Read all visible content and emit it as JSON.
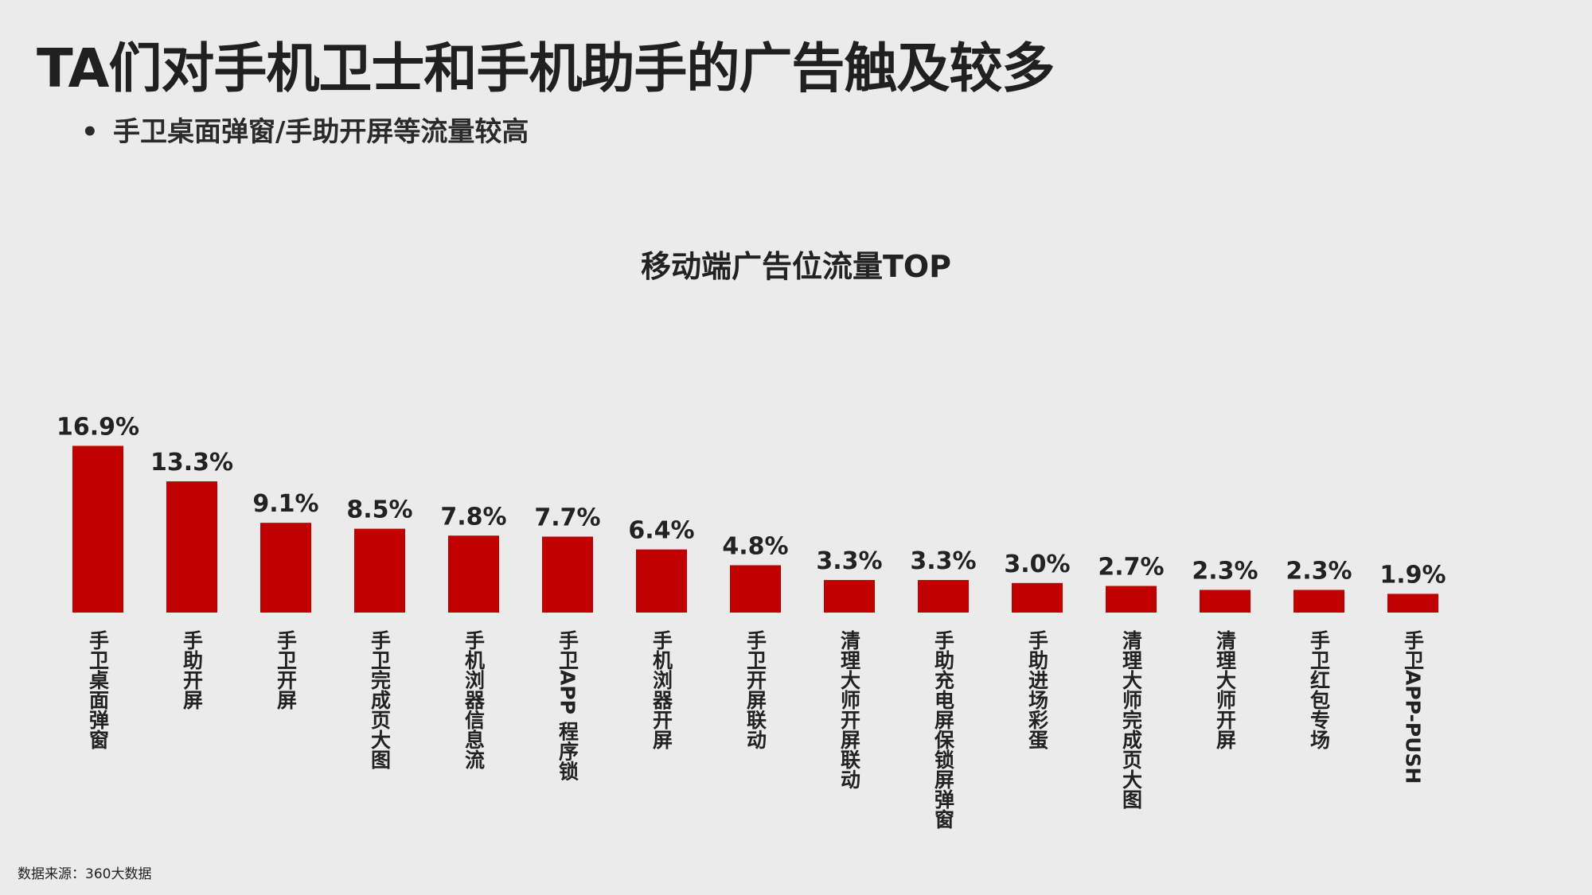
{
  "header": {
    "title": "TA们对手机卫士和手机助手的广告触及较多",
    "bullet": "•",
    "subtitle": "手卫桌面弹窗/手助开屏等流量较高"
  },
  "colors": {
    "bar": "#c00000",
    "background": "#ebebeb",
    "text": "#222222"
  },
  "chart_data": {
    "type": "bar",
    "title": "移动端广告位流量TOP",
    "xlabel": "",
    "ylabel": "",
    "ylim": [
      0,
      18
    ],
    "grid": false,
    "legend": "none",
    "categories": [
      "手卫桌面弹窗",
      "手助开屏",
      "手卫开屏",
      "手卫完成页大图",
      "手机浏器信息流",
      "手卫APP 程序锁",
      "手机浏器开屏",
      "手卫开屏联动",
      "清理大师开屏联动",
      "手助充电屏保锁屏弹窗",
      "手助进场彩蛋",
      "清理大师完成页大图",
      "清理大师开屏",
      "手卫红包专场",
      "手卫APP-PUSH"
    ],
    "values": [
      16.9,
      13.3,
      9.1,
      8.5,
      7.8,
      7.7,
      6.4,
      4.8,
      3.3,
      3.3,
      3.0,
      2.7,
      2.3,
      2.3,
      1.9
    ],
    "labels": [
      "16.9%",
      "13.3%",
      "9.1%",
      "8.5%",
      "7.8%",
      "7.7%",
      "6.4%",
      "4.8%",
      "3.3%",
      "3.3%",
      "3.0%",
      "2.7%",
      "2.3%",
      "2.3%",
      "1.9%"
    ]
  },
  "footer": {
    "source": "数据来源：360大数据"
  }
}
